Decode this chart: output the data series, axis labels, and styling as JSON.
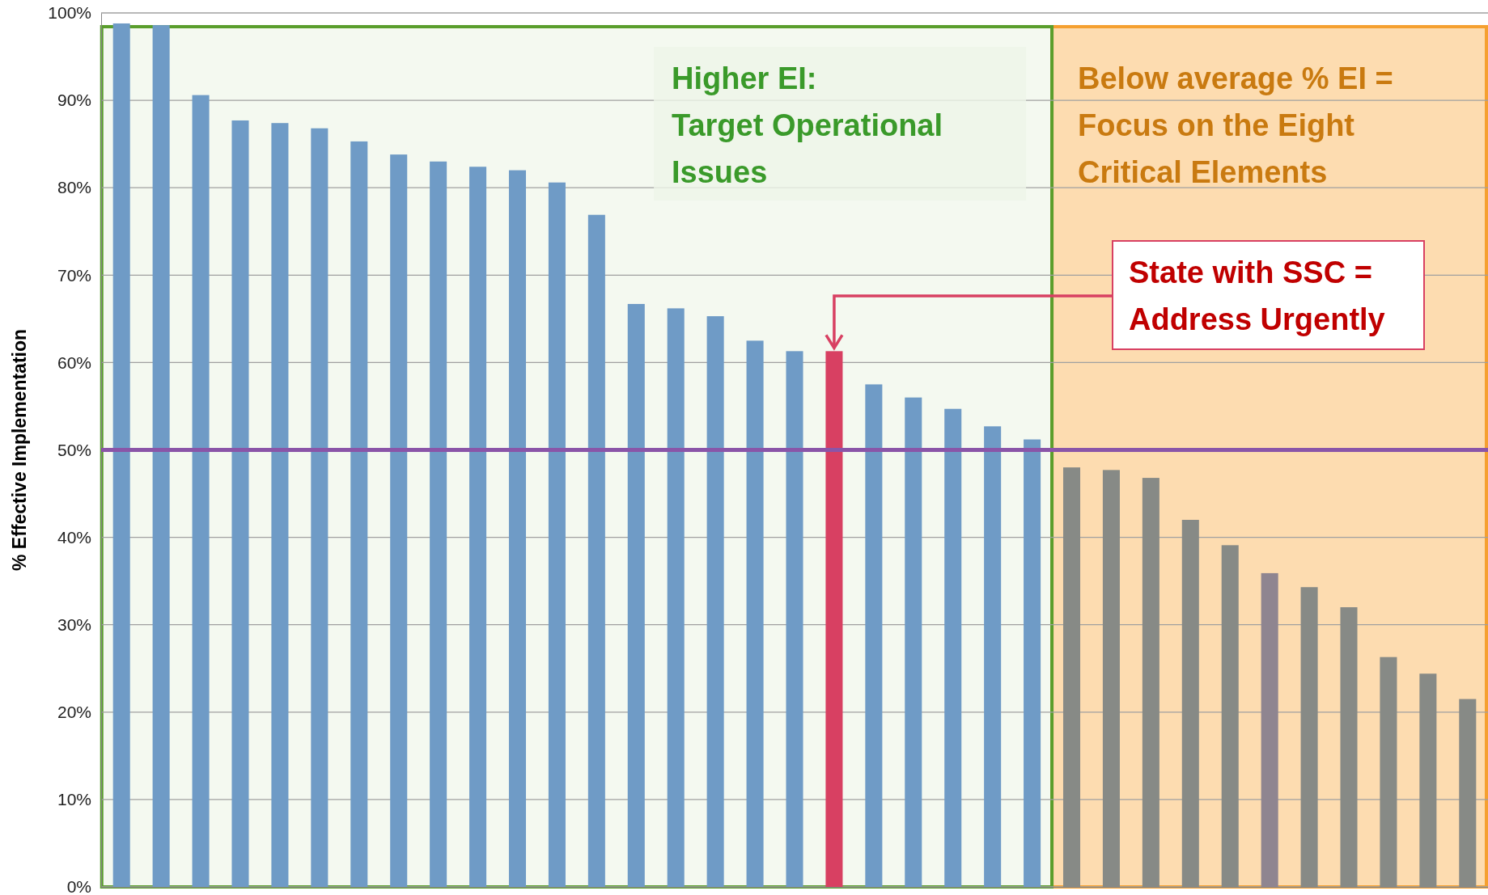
{
  "chart_data": {
    "type": "bar",
    "ylabel": "% Effective Implementation",
    "categories": [
      null,
      null,
      null,
      null,
      null,
      null,
      null,
      null,
      null,
      null,
      null,
      null,
      null,
      null,
      null,
      null,
      null,
      null,
      null,
      null,
      null,
      null,
      null,
      null,
      null,
      null,
      null,
      null,
      null,
      null,
      null,
      null,
      null,
      null,
      null
    ],
    "values": [
      98.8,
      98.6,
      90.6,
      87.7,
      87.4,
      86.8,
      85.3,
      83.8,
      83.0,
      82.4,
      82.0,
      80.6,
      76.9,
      66.7,
      66.2,
      65.3,
      62.5,
      61.3,
      61.3,
      57.5,
      56.0,
      54.7,
      52.7,
      51.2,
      48.0,
      47.7,
      46.8,
      42.0,
      39.1,
      35.9,
      34.3,
      32.0,
      26.3,
      24.4,
      21.5
    ],
    "colors": [
      "#6f9bc6",
      "#6f9bc6",
      "#6f9bc6",
      "#6f9bc6",
      "#6f9bc6",
      "#6f9bc6",
      "#6f9bc6",
      "#6f9bc6",
      "#6f9bc6",
      "#6f9bc6",
      "#6f9bc6",
      "#6f9bc6",
      "#6f9bc6",
      "#6f9bc6",
      "#6f9bc6",
      "#6f9bc6",
      "#6f9bc6",
      "#6f9bc6",
      "#d84062",
      "#6f9bc6",
      "#6f9bc6",
      "#6f9bc6",
      "#6f9bc6",
      "#6f9bc6",
      "#878a86",
      "#878a86",
      "#878a86",
      "#878a86",
      "#878a86",
      "#8f8590",
      "#878a86",
      "#878a86",
      "#878a86",
      "#878a86",
      "#878a86"
    ],
    "ylim": [
      0,
      100
    ],
    "yticks": [
      {
        "value": 0,
        "label": "0%"
      },
      {
        "value": 10,
        "label": "10%"
      },
      {
        "value": 20,
        "label": "20%"
      },
      {
        "value": 30,
        "label": "30%"
      },
      {
        "value": 40,
        "label": "40%"
      },
      {
        "value": 50,
        "label": "50%"
      },
      {
        "value": 60,
        "label": "60%"
      },
      {
        "value": 70,
        "label": "70%"
      },
      {
        "value": 80,
        "label": "80%"
      },
      {
        "value": 90,
        "label": "90%"
      },
      {
        "value": 100,
        "label": "100%"
      }
    ],
    "grid": "y",
    "tick_labels": "y",
    "ref_lines": [
      {
        "axis": "y",
        "value": 50,
        "color": "#8a55a8"
      }
    ],
    "annotations": [
      "Higher EI:\nTarget Operational\nIssues",
      "Below average % EI =\nFocus on the Eight\nCritical Elements",
      "State with SSC =\nAddress Urgently"
    ]
  }
}
